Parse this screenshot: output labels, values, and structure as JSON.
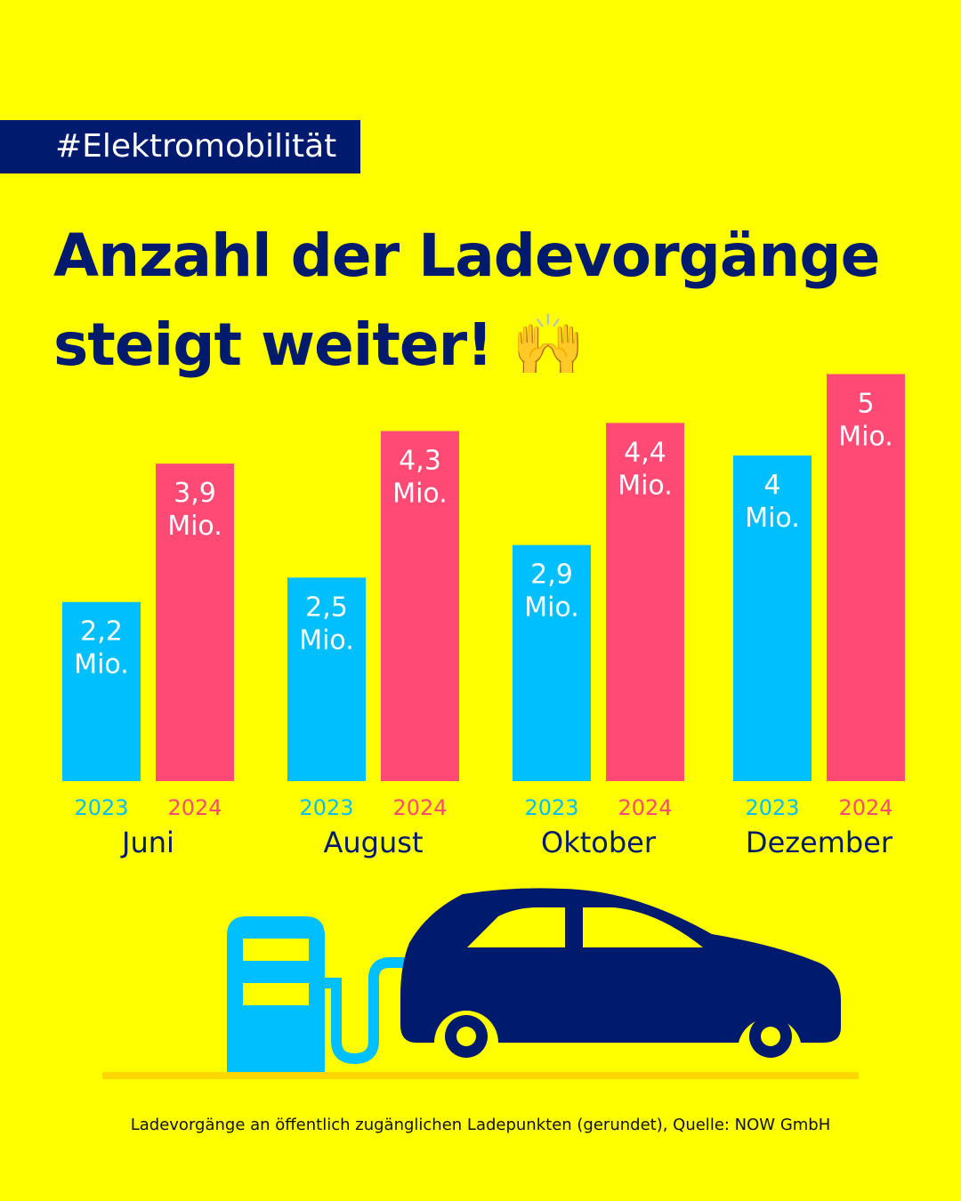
{
  "tag": "#Elektromobilität",
  "headline": [
    "Anzahl der Ladevorgänge",
    "steigt weiter! 🙌"
  ],
  "footnote": "Ladevorgänge an öffentlich zugänglichen Ladepunkten (gerundet), Quelle: NOW GmbH",
  "colors": {
    "background": "#FFFF00",
    "navy": "#001A6E",
    "series_2023": "#00BFFF",
    "series_2024": "#FF4A75",
    "ground": "#FFD700"
  },
  "chart_data": {
    "type": "bar",
    "categories": [
      "Juni",
      "August",
      "Oktober",
      "Dezember"
    ],
    "series": [
      {
        "name": "2023",
        "values": [
          2.2,
          2.5,
          2.9,
          4.0
        ],
        "labels": [
          "2,2",
          "2,5",
          "2,9",
          "4"
        ]
      },
      {
        "name": "2024",
        "values": [
          3.9,
          4.3,
          4.4,
          5.0
        ],
        "labels": [
          "3,9",
          "4,3",
          "4,4",
          "5"
        ]
      }
    ],
    "value_unit": "Mio.",
    "ylim": [
      0,
      5.5
    ],
    "grid": false
  },
  "illustration": [
    "charging-station-icon",
    "car-icon"
  ]
}
